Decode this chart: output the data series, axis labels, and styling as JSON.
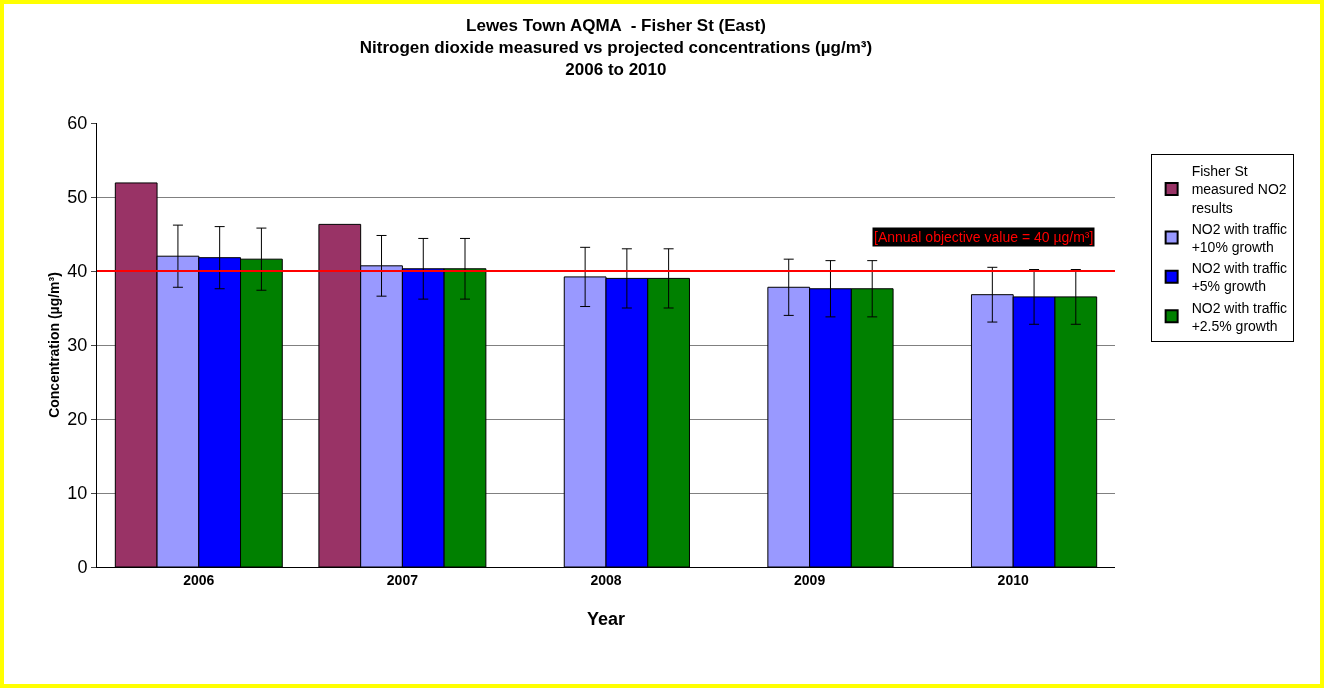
{
  "chart_data": {
    "type": "bar",
    "title": "Lewes Town AQMA  - Fisher St (East)\nNitrogen dioxide measured vs projected concentrations (µg/m³)\n2006 to 2010",
    "xlabel": "Year",
    "ylabel": "Concentration (µg/m³)",
    "categories": [
      "2006",
      "2007",
      "2008",
      "2009",
      "2010"
    ],
    "series": [
      {
        "name": "Fisher St measured NO2 results",
        "color": "#993366",
        "values": [
          51.9,
          46.3,
          null,
          null,
          null
        ]
      },
      {
        "name": "NO2 with traffic +10% growth",
        "color": "#9999ff",
        "values": [
          42.0,
          40.7,
          39.2,
          37.8,
          36.8
        ],
        "errors": [
          4.2,
          4.1,
          4.0,
          3.8,
          3.7
        ]
      },
      {
        "name": "NO2 with traffic +5% growth",
        "color": "#0000ff",
        "values": [
          41.8,
          40.3,
          39.0,
          37.6,
          36.5
        ],
        "errors": [
          4.2,
          4.1,
          4.0,
          3.8,
          3.7
        ]
      },
      {
        "name": "NO2 with traffic +2.5% growth",
        "color": "#008000",
        "values": [
          41.6,
          40.3,
          39.0,
          37.6,
          36.5
        ],
        "errors": [
          4.2,
          4.1,
          4.0,
          3.8,
          3.7
        ]
      }
    ],
    "ylim": [
      0,
      60
    ],
    "yticks": [
      0,
      10,
      20,
      30,
      40,
      50,
      60
    ],
    "grid": "y",
    "legend": "right",
    "ref_lines": [
      {
        "axis": "y",
        "value": 40,
        "label": "[Annual objective value = 40 µg/m³]",
        "color": "#ff0000"
      }
    ]
  }
}
